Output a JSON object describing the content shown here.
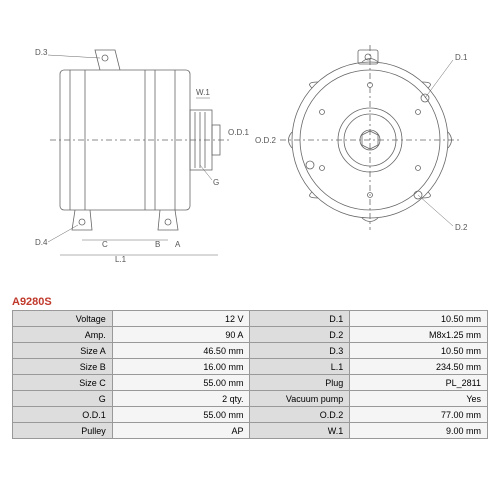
{
  "part_number": "A9280S",
  "part_number_color": "#c0392b",
  "diagram": {
    "stroke_color": "#666666",
    "stroke_width": 0.8,
    "label_fontsize": 8,
    "label_color": "#555555",
    "side_view": {
      "labels": [
        "D.3",
        "D.4",
        "L.1",
        "C",
        "B",
        "A",
        "W.1",
        "O.D.1",
        "O.D.2",
        "G"
      ]
    },
    "front_view": {
      "labels": [
        "D.1",
        "D.2"
      ]
    }
  },
  "specs": {
    "rows": [
      {
        "l1": "Voltage",
        "v1": "12 V",
        "l2": "D.1",
        "v2": "10.50 mm"
      },
      {
        "l1": "Amp.",
        "v1": "90 A",
        "l2": "D.2",
        "v2": "M8x1.25 mm"
      },
      {
        "l1": "Size A",
        "v1": "46.50 mm",
        "l2": "D.3",
        "v2": "10.50 mm"
      },
      {
        "l1": "Size B",
        "v1": "16.00 mm",
        "l2": "L.1",
        "v2": "234.50 mm"
      },
      {
        "l1": "Size C",
        "v1": "55.00 mm",
        "l2": "Plug",
        "v2": "PL_2811"
      },
      {
        "l1": "G",
        "v1": "2 qty.",
        "l2": "Vacuum pump",
        "v2": "Yes"
      },
      {
        "l1": "O.D.1",
        "v1": "55.00 mm",
        "l2": "O.D.2",
        "v2": "77.00 mm"
      },
      {
        "l1": "Pulley",
        "v1": "AP",
        "l2": "W.1",
        "v2": "9.00 mm"
      }
    ],
    "header_bg": "#dddddd",
    "cell_bg": "#f5f5f5",
    "border_color": "#999999",
    "fontsize": 9
  }
}
